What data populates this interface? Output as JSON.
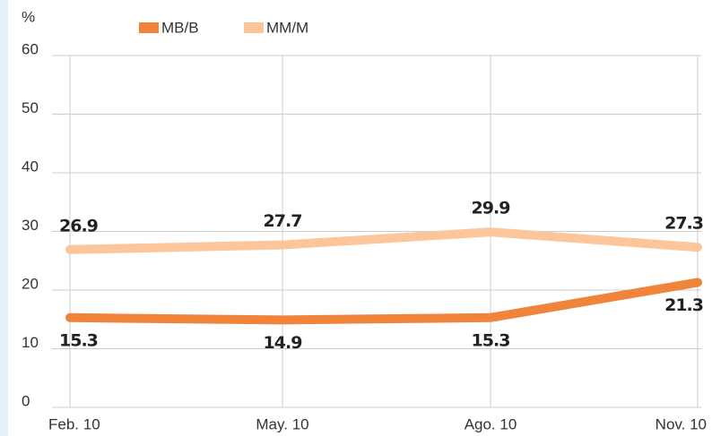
{
  "chart_data": {
    "type": "line",
    "y_label": "%",
    "categories": [
      "Feb. 10",
      "May. 10",
      "Ago. 10",
      "Nov. 10"
    ],
    "series": [
      {
        "name": "MB/B",
        "color": "#f0843a",
        "values": [
          15.3,
          14.9,
          15.3,
          21.3
        ],
        "label_position": "below"
      },
      {
        "name": "MM/M",
        "color": "#fcc59a",
        "values": [
          26.9,
          27.7,
          29.9,
          27.3
        ],
        "label_position": "above"
      }
    ],
    "ylim": [
      0,
      60
    ],
    "yticks": [
      0,
      10,
      20,
      30,
      40,
      50,
      60
    ],
    "grid": true,
    "legend": "top"
  }
}
